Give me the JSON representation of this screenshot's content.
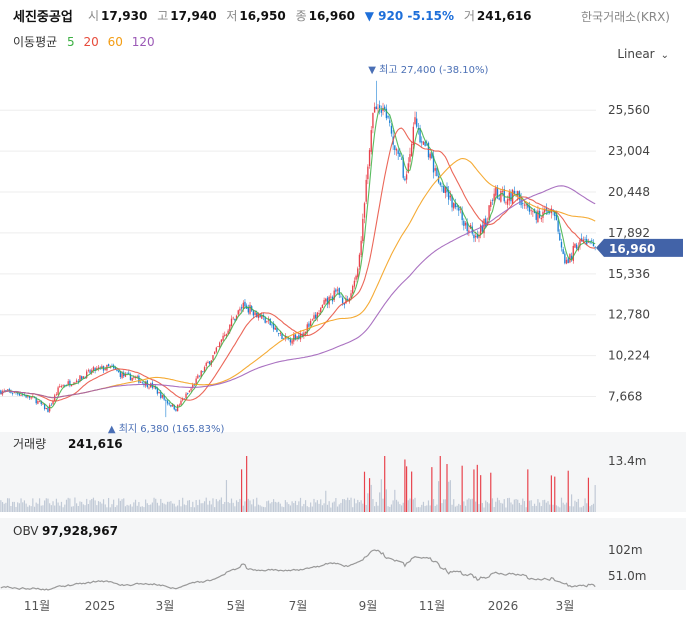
{
  "header": {
    "name": "세진중공업",
    "open_label": "시",
    "open": "17,930",
    "high_label": "고",
    "high": "17,940",
    "low_label": "저",
    "low": "16,950",
    "close_label": "종",
    "close": "16,960",
    "change": "▼ 920 -5.15%",
    "volume_label": "거",
    "volume": "241,616",
    "exchange": "한국거래소(KRX)"
  },
  "ma": {
    "label": "이동평균",
    "periods": [
      {
        "value": "5",
        "color": "#3cb043"
      },
      {
        "value": "20",
        "color": "#e74c3c"
      },
      {
        "value": "60",
        "color": "#f39c12"
      },
      {
        "value": "120",
        "color": "#9b59b6"
      }
    ]
  },
  "scale": {
    "label": "Linear"
  },
  "colors": {
    "up": "#e8414b",
    "down": "#1a7fd4",
    "price_tag": "#4263a8",
    "obv": "#999999",
    "volume": "#c0c9d6"
  },
  "chart_data": {
    "type": "candlestick",
    "price_axis": {
      "ticks": [
        "25,560",
        "23,004",
        "20,448",
        "17,892",
        "15,336",
        "12,780",
        "10,224",
        "7,668"
      ],
      "range": [
        5700,
        28700
      ]
    },
    "x_ticks": [
      "11월",
      "2025",
      "3월",
      "5월",
      "7월",
      "9월",
      "11월",
      "2026",
      "3월"
    ],
    "last_price_tag": "16,960",
    "high_annotation": "▼ 최고 27,400 (-38.10%)",
    "low_annotation": "▲ 최지 6,380 (165.83%)",
    "price_trend": [
      [
        0,
        8000
      ],
      [
        10,
        7900
      ],
      [
        20,
        7500
      ],
      [
        28,
        6800
      ],
      [
        35,
        8300
      ],
      [
        45,
        8700
      ],
      [
        55,
        9300
      ],
      [
        65,
        9500
      ],
      [
        72,
        9000
      ],
      [
        80,
        8800
      ],
      [
        90,
        8300
      ],
      [
        98,
        7400
      ],
      [
        104,
        6900
      ],
      [
        112,
        8000
      ],
      [
        120,
        9300
      ],
      [
        128,
        10500
      ],
      [
        136,
        12200
      ],
      [
        144,
        13400
      ],
      [
        152,
        12900
      ],
      [
        160,
        12200
      ],
      [
        168,
        11200
      ],
      [
        176,
        11400
      ],
      [
        184,
        12200
      ],
      [
        192,
        13400
      ],
      [
        200,
        14200
      ],
      [
        206,
        13400
      ],
      [
        212,
        15800
      ],
      [
        218,
        21800
      ],
      [
        222,
        26200
      ],
      [
        228,
        25200
      ],
      [
        234,
        23400
      ],
      [
        240,
        21400
      ],
      [
        246,
        24600
      ],
      [
        252,
        23200
      ],
      [
        258,
        21800
      ],
      [
        264,
        20600
      ],
      [
        270,
        19600
      ],
      [
        276,
        18400
      ],
      [
        282,
        17800
      ],
      [
        288,
        18600
      ],
      [
        294,
        20400
      ],
      [
        300,
        20200
      ],
      [
        306,
        20400
      ],
      [
        312,
        19400
      ],
      [
        318,
        18900
      ],
      [
        324,
        19600
      ],
      [
        330,
        18600
      ],
      [
        336,
        15900
      ],
      [
        342,
        17200
      ],
      [
        348,
        17400
      ],
      [
        352,
        16960
      ]
    ],
    "volume_panel": {
      "label": "거래량",
      "value": "241,616",
      "ticks": [
        "13.4m"
      ]
    },
    "obv_panel": {
      "label": "OBV",
      "value": "97,928,967",
      "ticks": [
        "102m",
        "51.0m"
      ]
    }
  }
}
